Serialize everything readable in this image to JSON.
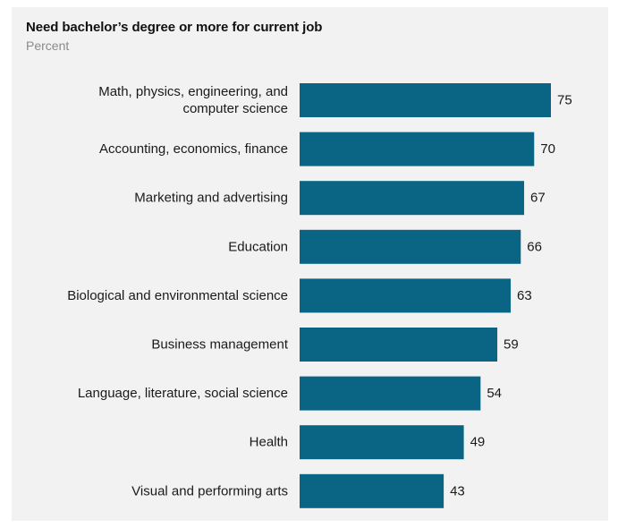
{
  "chart_data": {
    "type": "bar",
    "orientation": "horizontal",
    "title": "Need bachelor’s degree or more for current job",
    "subtitle": "Percent",
    "categories": [
      [
        "Math, physics, engineering, and",
        "computer science"
      ],
      [
        "Accounting, economics, finance"
      ],
      [
        "Marketing and advertising"
      ],
      [
        "Education"
      ],
      [
        "Biological and environmental science"
      ],
      [
        "Business management"
      ],
      [
        "Language, literature, social science"
      ],
      [
        "Health"
      ],
      [
        "Visual and performing arts"
      ]
    ],
    "values": [
      75,
      70,
      67,
      66,
      63,
      59,
      54,
      49,
      43
    ],
    "value_labels": [
      "75",
      "70",
      "67",
      "66",
      "63",
      "59",
      "54",
      "49",
      "43"
    ],
    "bar_color": "#0a6585",
    "background_color": "#f2f2f2",
    "grid": false,
    "legend": "none",
    "xlim": [
      0,
      75
    ]
  }
}
